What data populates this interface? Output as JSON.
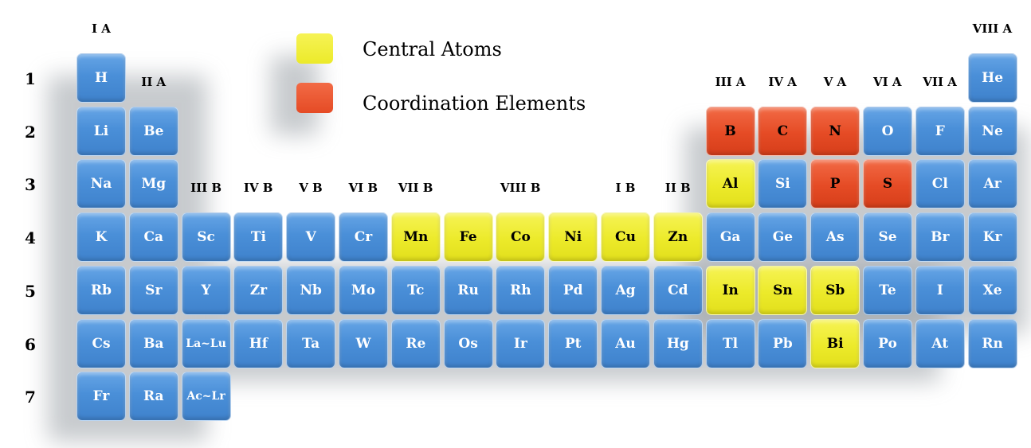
{
  "colors": {
    "blue": "#4a8fd8",
    "yellow": "#ecea2a",
    "red": "#e54b25"
  },
  "legend": [
    {
      "color": "yellow",
      "label": "Central Atoms"
    },
    {
      "color": "red",
      "label": "Coordination Elements"
    }
  ],
  "period_labels": [
    "1",
    "2",
    "3",
    "4",
    "5",
    "6",
    "7"
  ],
  "group_labels": [
    {
      "text": "I A",
      "col": 1
    },
    {
      "text": "II A",
      "col": 2
    },
    {
      "text": "III B",
      "col": 3
    },
    {
      "text": "IV B",
      "col": 4
    },
    {
      "text": "V B",
      "col": 5
    },
    {
      "text": "VI B",
      "col": 6
    },
    {
      "text": "VII B",
      "col": 7
    },
    {
      "text": "VIII B",
      "col": 9
    },
    {
      "text": "I B",
      "col": 11
    },
    {
      "text": "II B",
      "col": 12
    },
    {
      "text": "III A",
      "col": 13
    },
    {
      "text": "IV A",
      "col": 14
    },
    {
      "text": "V A",
      "col": 15
    },
    {
      "text": "VI A",
      "col": 16
    },
    {
      "text": "VII A",
      "col": 17
    },
    {
      "text": "VIII A",
      "col": 18
    }
  ],
  "elements": [
    {
      "symbol": "H",
      "period": 1,
      "col": 1,
      "color": "blue"
    },
    {
      "symbol": "He",
      "period": 1,
      "col": 18,
      "color": "blue"
    },
    {
      "symbol": "Li",
      "period": 2,
      "col": 1,
      "color": "blue"
    },
    {
      "symbol": "Be",
      "period": 2,
      "col": 2,
      "color": "blue"
    },
    {
      "symbol": "B",
      "period": 2,
      "col": 13,
      "color": "red"
    },
    {
      "symbol": "C",
      "period": 2,
      "col": 14,
      "color": "red"
    },
    {
      "symbol": "N",
      "period": 2,
      "col": 15,
      "color": "red"
    },
    {
      "symbol": "O",
      "period": 2,
      "col": 16,
      "color": "blue"
    },
    {
      "symbol": "F",
      "period": 2,
      "col": 17,
      "color": "blue"
    },
    {
      "symbol": "Ne",
      "period": 2,
      "col": 18,
      "color": "blue"
    },
    {
      "symbol": "Na",
      "period": 3,
      "col": 1,
      "color": "blue"
    },
    {
      "symbol": "Mg",
      "period": 3,
      "col": 2,
      "color": "blue"
    },
    {
      "symbol": "Al",
      "period": 3,
      "col": 13,
      "color": "yellow"
    },
    {
      "symbol": "Si",
      "period": 3,
      "col": 14,
      "color": "blue"
    },
    {
      "symbol": "P",
      "period": 3,
      "col": 15,
      "color": "red"
    },
    {
      "symbol": "S",
      "period": 3,
      "col": 16,
      "color": "red"
    },
    {
      "symbol": "Cl",
      "period": 3,
      "col": 17,
      "color": "blue"
    },
    {
      "symbol": "Ar",
      "period": 3,
      "col": 18,
      "color": "blue"
    },
    {
      "symbol": "K",
      "period": 4,
      "col": 1,
      "color": "blue"
    },
    {
      "symbol": "Ca",
      "period": 4,
      "col": 2,
      "color": "blue"
    },
    {
      "symbol": "Sc",
      "period": 4,
      "col": 3,
      "color": "blue"
    },
    {
      "symbol": "Ti",
      "period": 4,
      "col": 4,
      "color": "blue"
    },
    {
      "symbol": "V",
      "period": 4,
      "col": 5,
      "color": "blue"
    },
    {
      "symbol": "Cr",
      "period": 4,
      "col": 6,
      "color": "blue"
    },
    {
      "symbol": "Mn",
      "period": 4,
      "col": 7,
      "color": "yellow"
    },
    {
      "symbol": "Fe",
      "period": 4,
      "col": 8,
      "color": "yellow"
    },
    {
      "symbol": "Co",
      "period": 4,
      "col": 9,
      "color": "yellow"
    },
    {
      "symbol": "Ni",
      "period": 4,
      "col": 10,
      "color": "yellow"
    },
    {
      "symbol": "Cu",
      "period": 4,
      "col": 11,
      "color": "yellow"
    },
    {
      "symbol": "Zn",
      "period": 4,
      "col": 12,
      "color": "yellow"
    },
    {
      "symbol": "Ga",
      "period": 4,
      "col": 13,
      "color": "blue"
    },
    {
      "symbol": "Ge",
      "period": 4,
      "col": 14,
      "color": "blue"
    },
    {
      "symbol": "As",
      "period": 4,
      "col": 15,
      "color": "blue"
    },
    {
      "symbol": "Se",
      "period": 4,
      "col": 16,
      "color": "blue"
    },
    {
      "symbol": "Br",
      "period": 4,
      "col": 17,
      "color": "blue"
    },
    {
      "symbol": "Kr",
      "period": 4,
      "col": 18,
      "color": "blue"
    },
    {
      "symbol": "Rb",
      "period": 5,
      "col": 1,
      "color": "blue"
    },
    {
      "symbol": "Sr",
      "period": 5,
      "col": 2,
      "color": "blue"
    },
    {
      "symbol": "Y",
      "period": 5,
      "col": 3,
      "color": "blue"
    },
    {
      "symbol": "Zr",
      "period": 5,
      "col": 4,
      "color": "blue"
    },
    {
      "symbol": "Nb",
      "period": 5,
      "col": 5,
      "color": "blue"
    },
    {
      "symbol": "Mo",
      "period": 5,
      "col": 6,
      "color": "blue"
    },
    {
      "symbol": "Tc",
      "period": 5,
      "col": 7,
      "color": "blue"
    },
    {
      "symbol": "Ru",
      "period": 5,
      "col": 8,
      "color": "blue"
    },
    {
      "symbol": "Rh",
      "period": 5,
      "col": 9,
      "color": "blue"
    },
    {
      "symbol": "Pd",
      "period": 5,
      "col": 10,
      "color": "blue"
    },
    {
      "symbol": "Ag",
      "period": 5,
      "col": 11,
      "color": "blue"
    },
    {
      "symbol": "Cd",
      "period": 5,
      "col": 12,
      "color": "blue"
    },
    {
      "symbol": "In",
      "period": 5,
      "col": 13,
      "color": "yellow"
    },
    {
      "symbol": "Sn",
      "period": 5,
      "col": 14,
      "color": "yellow"
    },
    {
      "symbol": "Sb",
      "period": 5,
      "col": 15,
      "color": "yellow"
    },
    {
      "symbol": "Te",
      "period": 5,
      "col": 16,
      "color": "blue"
    },
    {
      "symbol": "I",
      "period": 5,
      "col": 17,
      "color": "blue"
    },
    {
      "symbol": "Xe",
      "period": 5,
      "col": 18,
      "color": "blue"
    },
    {
      "symbol": "Cs",
      "period": 6,
      "col": 1,
      "color": "blue"
    },
    {
      "symbol": "Ba",
      "period": 6,
      "col": 2,
      "color": "blue"
    },
    {
      "symbol": "La~Lu",
      "period": 6,
      "col": 3,
      "color": "blue"
    },
    {
      "symbol": "Hf",
      "period": 6,
      "col": 4,
      "color": "blue"
    },
    {
      "symbol": "Ta",
      "period": 6,
      "col": 5,
      "color": "blue"
    },
    {
      "symbol": "W",
      "period": 6,
      "col": 6,
      "color": "blue"
    },
    {
      "symbol": "Re",
      "period": 6,
      "col": 7,
      "color": "blue"
    },
    {
      "symbol": "Os",
      "period": 6,
      "col": 8,
      "color": "blue"
    },
    {
      "symbol": "Ir",
      "period": 6,
      "col": 9,
      "color": "blue"
    },
    {
      "symbol": "Pt",
      "period": 6,
      "col": 10,
      "color": "blue"
    },
    {
      "symbol": "Au",
      "period": 6,
      "col": 11,
      "color": "blue"
    },
    {
      "symbol": "Hg",
      "period": 6,
      "col": 12,
      "color": "blue"
    },
    {
      "symbol": "Tl",
      "period": 6,
      "col": 13,
      "color": "blue"
    },
    {
      "symbol": "Pb",
      "period": 6,
      "col": 14,
      "color": "blue"
    },
    {
      "symbol": "Bi",
      "period": 6,
      "col": 15,
      "color": "yellow"
    },
    {
      "symbol": "Po",
      "period": 6,
      "col": 16,
      "color": "blue"
    },
    {
      "symbol": "At",
      "period": 6,
      "col": 17,
      "color": "blue"
    },
    {
      "symbol": "Rn",
      "period": 6,
      "col": 18,
      "color": "blue"
    },
    {
      "symbol": "Fr",
      "period": 7,
      "col": 1,
      "color": "blue"
    },
    {
      "symbol": "Ra",
      "period": 7,
      "col": 2,
      "color": "blue"
    },
    {
      "symbol": "Ac~Lr",
      "period": 7,
      "col": 3,
      "color": "blue"
    }
  ]
}
